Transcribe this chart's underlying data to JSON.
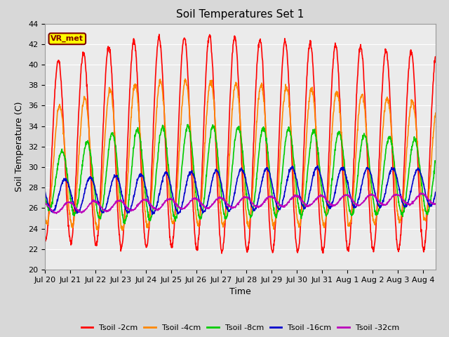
{
  "title": "Soil Temperatures Set 1",
  "xlabel": "Time",
  "ylabel": "Soil Temperature (C)",
  "ylim": [
    20,
    44
  ],
  "xlim_start": 0,
  "xlim_end": 15.5,
  "xtick_labels": [
    "Jul 20",
    "Jul 21",
    "Jul 22",
    "Jul 23",
    "Jul 24",
    "Jul 25",
    "Jul 26",
    "Jul 27",
    "Jul 28",
    "Jul 29",
    "Jul 30",
    "Jul 31",
    "Aug 1",
    "Aug 2",
    "Aug 3",
    "Aug 4"
  ],
  "xtick_positions": [
    0,
    1,
    2,
    3,
    4,
    5,
    6,
    7,
    8,
    9,
    10,
    11,
    12,
    13,
    14,
    15
  ],
  "legend_labels": [
    "Tsoil -2cm",
    "Tsoil -4cm",
    "Tsoil -8cm",
    "Tsoil -16cm",
    "Tsoil -32cm"
  ],
  "colors": [
    "#ff0000",
    "#ff8800",
    "#00cc00",
    "#0000cc",
    "#bb00bb"
  ],
  "background_color": "#d8d8d8",
  "plot_bg_color": "#ebebeb",
  "annotation_text": "VR_met",
  "annotation_bg": "#ffff00",
  "annotation_border": "#800000",
  "grid_color": "#ffffff",
  "title_fontsize": 11,
  "axis_fontsize": 9,
  "tick_fontsize": 8,
  "legend_fontsize": 8
}
